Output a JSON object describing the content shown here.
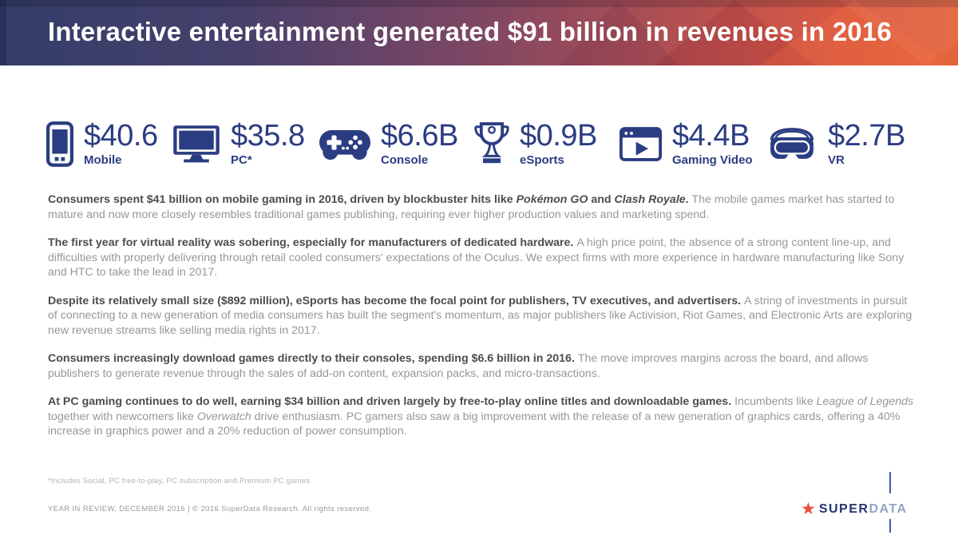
{
  "banner": {
    "title": "Interactive entertainment generated $91 billion in revenues in 2016"
  },
  "stats": [
    {
      "icon": "smartphone-icon",
      "value": "$40.6",
      "label": "Mobile"
    },
    {
      "icon": "monitor-icon",
      "value": "$35.8",
      "label": "PC*"
    },
    {
      "icon": "gamepad-icon",
      "value": "$6.6B",
      "label": "Console"
    },
    {
      "icon": "trophy-icon",
      "value": "$0.9B",
      "label": "eSports"
    },
    {
      "icon": "video-window-icon",
      "value": "$4.4B",
      "label": "Gaming Video"
    },
    {
      "icon": "vr-goggles-icon",
      "value": "$2.7B",
      "label": "VR"
    }
  ],
  "paragraphs": [
    {
      "segments": [
        {
          "style": "bold",
          "text": "Consumers spent $41 billion on mobile gaming in 2016, driven by blockbuster hits like "
        },
        {
          "style": "bold-italic",
          "text": "Pokémon GO"
        },
        {
          "style": "bold",
          "text": " and "
        },
        {
          "style": "bold-italic",
          "text": "Clash Royale"
        },
        {
          "style": "bold",
          "text": ". "
        },
        {
          "style": "regular",
          "text": "The mobile games market has started to mature and now more closely resembles traditional games publishing, requiring ever higher production values and marketing spend."
        }
      ]
    },
    {
      "segments": [
        {
          "style": "bold",
          "text": "The first year for virtual reality was sobering, especially for manufacturers of dedicated hardware. "
        },
        {
          "style": "regular",
          "text": "A high price point, the absence of a strong content line-up, and difficulties with properly delivering through retail cooled consumers' expectations of the Oculus. We expect firms with more experience in hardware manufacturing like Sony and HTC to take the lead in 2017."
        }
      ]
    },
    {
      "segments": [
        {
          "style": "bold",
          "text": "Despite its relatively small size ($892 million), eSports has become the focal point for publishers, TV executives, and advertisers. "
        },
        {
          "style": "regular",
          "text": "A string of investments in pursuit of connecting to a new generation of media consumers has built the segment's momentum, as major publishers like Activision, Riot Games, and Electronic Arts are exploring new revenue streams like selling media rights in 2017."
        }
      ]
    },
    {
      "segments": [
        {
          "style": "bold",
          "text": "Consumers increasingly download games directly to their consoles, spending $6.6 billion in 2016. "
        },
        {
          "style": "regular",
          "text": "The move improves margins across the board, and allows publishers to generate revenue through the sales of add-on content, expansion packs, and micro-transactions."
        }
      ]
    },
    {
      "segments": [
        {
          "style": "bold",
          "text": "At PC gaming continues to do well, earning $34 billion and driven largely by free-to-play online titles and downloadable games. "
        },
        {
          "style": "regular",
          "text": "Incumbents like "
        },
        {
          "style": "italic",
          "text": "League of Legends"
        },
        {
          "style": "regular",
          "text": " together with newcomers like "
        },
        {
          "style": "italic",
          "text": "Overwatch"
        },
        {
          "style": "regular",
          "text": " drive enthusiasm. PC gamers also saw a big improvement with the release of a new generation of graphics cards, offering a 40% increase in graphics power and a 20% reduction of power consumption."
        }
      ]
    }
  ],
  "footnote": "*Includes Social, PC free-to-play, PC subscription and Premium PC games",
  "footer": {
    "text": "YEAR IN REVIEW, DECEMBER 2016  |  © 2016 SuperData Research. All rights reserved."
  },
  "logo": {
    "star": "★",
    "super": "SUPER",
    "data": "DATA"
  },
  "colors": {
    "icon_navy": "#2b3d82",
    "banner_left": "#333e68",
    "banner_right": "#e4653c",
    "logo_star": "#e8503a",
    "logo_super": "#24356e",
    "logo_data": "#94a3c6"
  }
}
